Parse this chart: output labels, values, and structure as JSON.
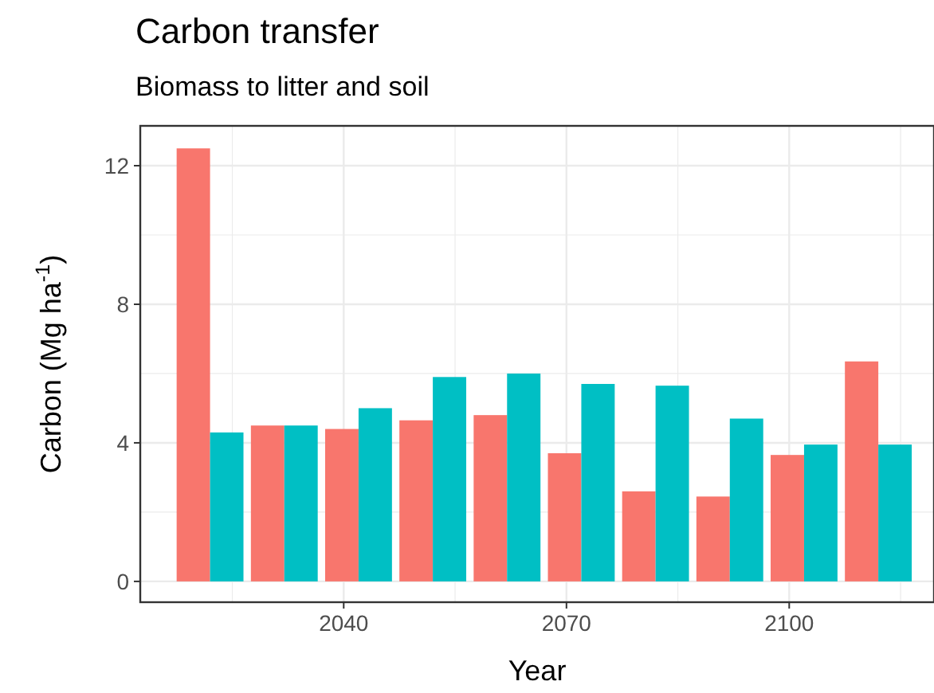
{
  "chart_data": {
    "type": "bar",
    "title": "Carbon transfer",
    "subtitle": "Biomass to litter and soil",
    "xlabel": "Year",
    "ylabel": "Carbon (Mg ha$^{-1}$)",
    "x": [
      2022,
      2032,
      2042,
      2052,
      2062,
      2072,
      2082,
      2092,
      2102,
      2112
    ],
    "series": [
      {
        "color": "#f8766d",
        "values": [
          12.5,
          4.5,
          4.4,
          4.65,
          4.8,
          3.7,
          2.6,
          2.45,
          3.65,
          6.35
        ]
      },
      {
        "color": "#00bfc4",
        "values": [
          4.3,
          4.5,
          5.0,
          5.9,
          6.0,
          5.7,
          5.65,
          4.7,
          3.95,
          3.95
        ]
      }
    ],
    "xlim": [
      2012.6,
      2119.5
    ],
    "xticks": [
      2040,
      2070,
      2100
    ],
    "ylim": [
      -0.6,
      13.15
    ],
    "yticks": [
      0,
      4,
      8,
      12
    ],
    "grid": true
  }
}
